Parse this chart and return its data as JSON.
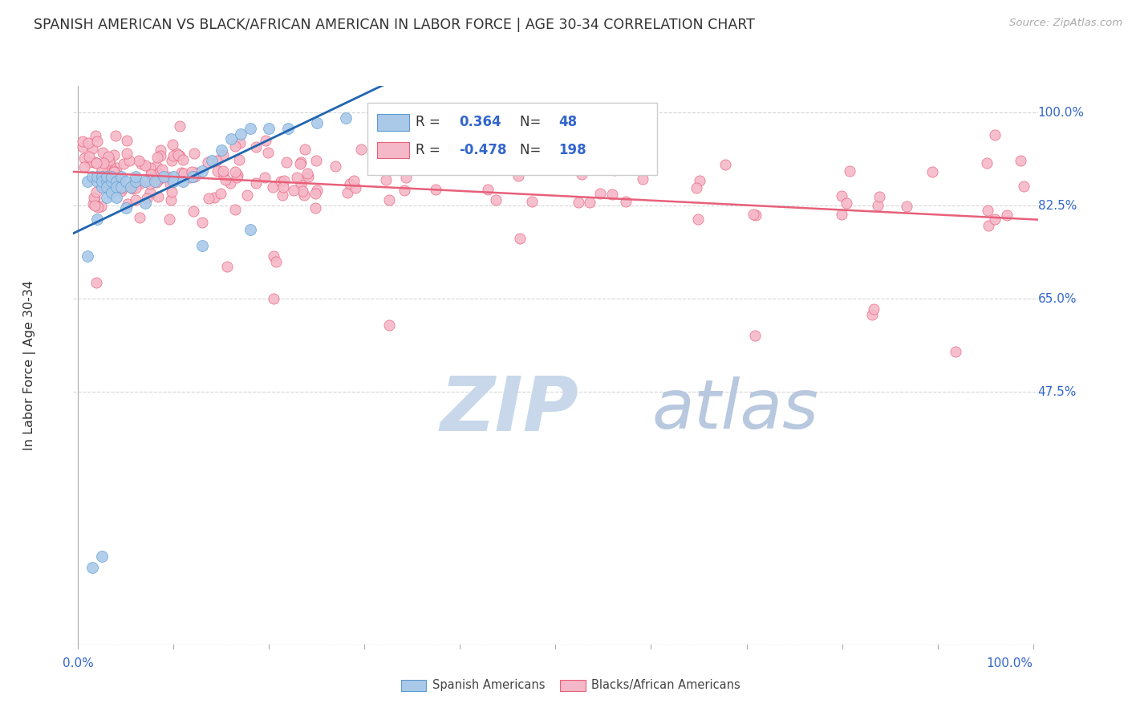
{
  "title": "SPANISH AMERICAN VS BLACK/AFRICAN AMERICAN IN LABOR FORCE | AGE 30-34 CORRELATION CHART",
  "source": "Source: ZipAtlas.com",
  "ylabel": "In Labor Force | Age 30-34",
  "blue_R": 0.364,
  "blue_N": 48,
  "pink_R": -0.478,
  "pink_N": 198,
  "blue_color": "#aac9e8",
  "pink_color": "#f5b8c8",
  "blue_edge_color": "#5b9bd5",
  "pink_edge_color": "#e8607a",
  "blue_line_color": "#2065b0",
  "pink_line_color": "#e8607a",
  "grid_color": "#cccccc",
  "title_color": "#333333",
  "axis_label_color": "#3366cc",
  "watermark_zip_color": "#c8d8ea",
  "watermark_atlas_color": "#b8c8de",
  "legend_label1": "Spanish Americans",
  "legend_label2": "Blacks/African Americans",
  "xlim": [
    0.0,
    1.0
  ],
  "ylim": [
    0.0,
    1.0
  ],
  "ytick_vals": [
    0.0,
    0.475,
    0.65,
    0.825,
    1.0
  ],
  "ytick_labels": [
    "",
    "47.5%",
    "65.0%",
    "82.5%",
    "100.0%"
  ]
}
